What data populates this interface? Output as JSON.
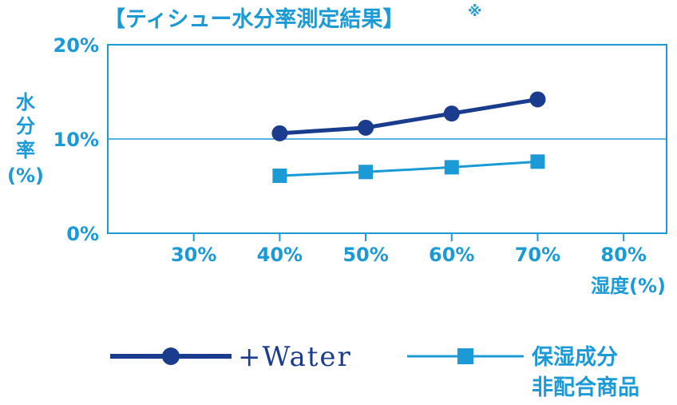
{
  "chart_data": {
    "type": "line",
    "title": "【ティシュー水分率測定結果】",
    "title_mark": "※",
    "ylabel": [
      "水",
      "分",
      "率",
      "(%)"
    ],
    "xlabel": "湿度(%)",
    "x_ticks": [
      "30%",
      "40%",
      "50%",
      "60%",
      "70%",
      "80%"
    ],
    "y_ticks": [
      "0%",
      "10%",
      "20%"
    ],
    "xlim": [
      20,
      85
    ],
    "ylim": [
      0,
      20
    ],
    "x": [
      40,
      50,
      60,
      70
    ],
    "series": [
      {
        "name": "+Water",
        "values": [
          10.6,
          11.2,
          12.7,
          14.2
        ],
        "color": "#1a3c8e",
        "marker": "circle"
      },
      {
        "name_lines": [
          "保湿成分",
          "非配合商品"
        ],
        "values": [
          6.1,
          6.5,
          7.0,
          7.6
        ],
        "color": "#1b9ad6",
        "marker": "square"
      }
    ],
    "gridlines_y": [
      10
    ],
    "legend": "bottom"
  }
}
